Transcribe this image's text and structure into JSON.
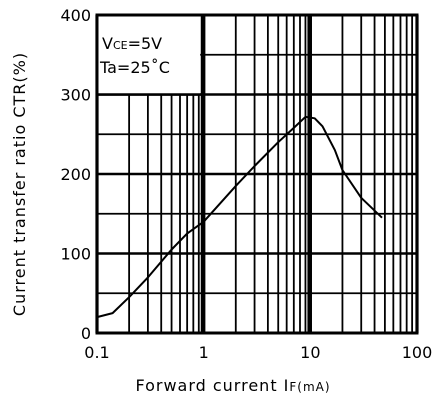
{
  "chart_data": {
    "type": "line",
    "xlabel": "Forward current",
    "xlabel_symbol": "I",
    "xlabel_symbol_sub": "F(mA)",
    "ylabel": "Current transfer ratio CTR(%)",
    "x_scale": "log",
    "xlim": [
      0.1,
      100
    ],
    "ylim": [
      0,
      400
    ],
    "x_ticks": [
      "0.1",
      "1",
      "10",
      "100"
    ],
    "y_ticks": [
      "0",
      "100",
      "200",
      "300",
      "400"
    ],
    "grid": true,
    "conditions": {
      "line1_prefix": "V",
      "line1_sub": "CE",
      "line1_suffix": "=5V",
      "line2": "Ta=25˚C"
    },
    "series": [
      {
        "x": [
          0.1,
          0.14,
          0.2,
          0.3,
          0.5,
          0.7,
          1,
          2,
          3,
          5,
          7,
          9,
          11,
          13,
          17,
          20,
          30,
          47
        ],
        "y": [
          20,
          25,
          45,
          70,
          105,
          125,
          140,
          185,
          210,
          240,
          258,
          272,
          270,
          260,
          230,
          205,
          170,
          145
        ]
      }
    ],
    "colors": {
      "line": "#000000",
      "grid": "#000000",
      "background": "#ffffff"
    }
  }
}
